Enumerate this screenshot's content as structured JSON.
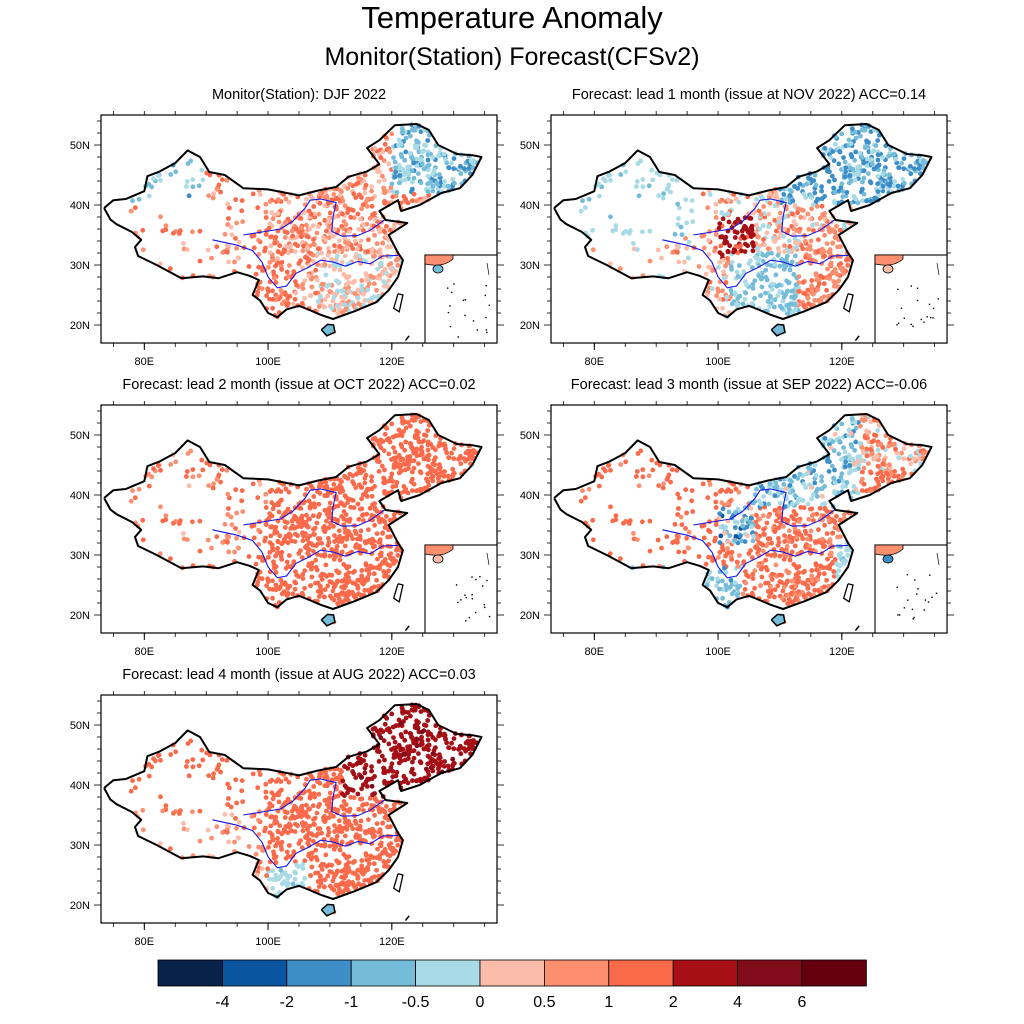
{
  "figure": {
    "title": "Temperature Anomaly",
    "subtitle": "Monitor(Station)   Forecast(CFSv2)"
  },
  "chart_data": [
    {
      "type": "scatter",
      "title": "Monitor(Station): DJF 2022",
      "x_ticks": [
        "80E",
        "100E",
        "120E"
      ],
      "y_ticks": [
        "20N",
        "30N",
        "40N",
        "50N"
      ],
      "lon_range": [
        73,
        137
      ],
      "lat_range": [
        17,
        55
      ],
      "pattern": "mixed",
      "acc": null
    },
    {
      "type": "scatter",
      "title": "Forecast: lead 1 month (issue at NOV 2022) ACC=0.14",
      "x_ticks": [
        "80E",
        "100E",
        "120E"
      ],
      "y_ticks": [
        "20N",
        "30N",
        "40N",
        "50N"
      ],
      "lon_range": [
        73,
        137
      ],
      "lat_range": [
        17,
        55
      ],
      "pattern": "cool-west-south",
      "acc": 0.14
    },
    {
      "type": "scatter",
      "title": "Forecast: lead 2 month (issue at OCT 2022) ACC=0.02",
      "x_ticks": [
        "80E",
        "100E",
        "120E"
      ],
      "y_ticks": [
        "20N",
        "30N",
        "40N",
        "50N"
      ],
      "lon_range": [
        73,
        137
      ],
      "lat_range": [
        17,
        55
      ],
      "pattern": "warm",
      "acc": 0.02
    },
    {
      "type": "scatter",
      "title": "Forecast: lead 3 month (issue at SEP 2022) ACC=-0.06",
      "x_ticks": [
        "80E",
        "100E",
        "120E"
      ],
      "y_ticks": [
        "20N",
        "30N",
        "40N",
        "50N"
      ],
      "lon_range": [
        73,
        137
      ],
      "lat_range": [
        17,
        55
      ],
      "pattern": "warm-cool-north",
      "acc": -0.06
    },
    {
      "type": "scatter",
      "title": "Forecast: lead 4 month (issue at AUG 2022) ACC=0.03",
      "x_ticks": [
        "80E",
        "100E",
        "120E"
      ],
      "y_ticks": [
        "20N",
        "30N",
        "40N",
        "50N"
      ],
      "lon_range": [
        73,
        137
      ],
      "lat_range": [
        17,
        55
      ],
      "pattern": "hot-northeast",
      "acc": 0.03
    }
  ],
  "colorbar": {
    "colors": [
      "#08224a",
      "#0a55a0",
      "#3d8dc7",
      "#75bcd9",
      "#a8dbe6",
      "#fbbca9",
      "#fc8f6f",
      "#fb6a4a",
      "#a50f15",
      "#7f0c18",
      "#67000d"
    ],
    "labels": [
      "-4",
      "-2",
      "-1",
      "-0.5",
      "0",
      "0.5",
      "1",
      "2",
      "4",
      "6"
    ]
  }
}
